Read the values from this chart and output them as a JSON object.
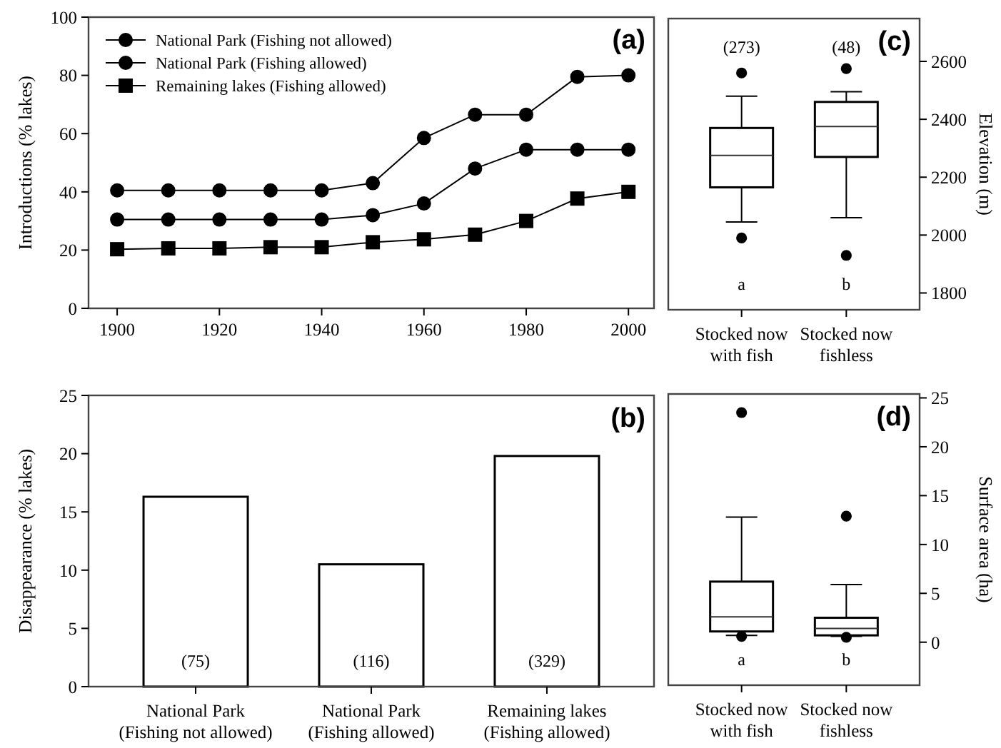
{
  "chart_data": [
    {
      "type": "line",
      "ylabel": "Introductions (% lakes)",
      "x": [
        1900,
        1910,
        1920,
        1930,
        1940,
        1950,
        1960,
        1970,
        1980,
        1990,
        2000
      ],
      "xlim": [
        1894.4,
        2005
      ],
      "xticks": [
        1900,
        1920,
        1940,
        1960,
        1980,
        2000
      ],
      "ylim": [
        0,
        100
      ],
      "yticks": [
        0,
        20,
        40,
        60,
        80,
        100
      ],
      "legend": "top left",
      "grid": false,
      "annotations": [
        "(a)"
      ],
      "series": [
        {
          "name": "National Park (Fishing not allowed)",
          "color": "#000000",
          "marker": "circle",
          "values": [
            30.5,
            30.5,
            30.5,
            30.5,
            30.5,
            32,
            36,
            48,
            54.5,
            54.5,
            54.5
          ]
        },
        {
          "name": "National Park (Fishing allowed)",
          "color": "#000000",
          "marker": "circle",
          "values": [
            40.5,
            40.5,
            40.5,
            40.5,
            40.5,
            43,
            58.5,
            66.5,
            66.5,
            79.5,
            80
          ]
        },
        {
          "name": "Remaining lakes (Fishing allowed)",
          "color": "#000000",
          "marker": "square",
          "values": [
            20.3,
            20.6,
            20.6,
            21,
            21,
            22.7,
            23.7,
            25.3,
            30,
            37.7,
            40
          ]
        }
      ]
    },
    {
      "type": "box",
      "ylabel": "Elevation (m)",
      "categories": [
        "Stocked now with fish",
        "Stocked now fishless"
      ],
      "ylim": [
        1742,
        2748
      ],
      "yticks": [
        1800,
        2000,
        2200,
        2400,
        2600
      ],
      "grid": false,
      "annotations": [
        "(c)",
        "(273)",
        "(48)",
        "a",
        "b"
      ],
      "boxes": [
        {
          "low": 2045,
          "q1": 2165,
          "median": 2275,
          "q3": 2370,
          "high": 2480,
          "outliers": [
            2560,
            1990
          ]
        },
        {
          "low": 2060,
          "q1": 2270,
          "median": 2375,
          "q3": 2460,
          "high": 2495,
          "outliers": [
            2575,
            1930
          ]
        }
      ]
    },
    {
      "type": "bar",
      "ylabel": "Disappearance (% lakes)",
      "categories": [
        "National Park (Fishing not allowed)",
        "National Park (Fishing allowed)",
        "Remaining lakes (Fishing allowed)"
      ],
      "values": [
        16.3,
        10.5,
        19.8
      ],
      "color": "#ffffff",
      "ylim": [
        0,
        25
      ],
      "yticks": [
        0,
        5,
        10,
        15,
        20,
        25
      ],
      "grid": false,
      "annotations": [
        "(b)",
        "(75)",
        "(116)",
        "(329)"
      ]
    },
    {
      "type": "box",
      "ylabel": "Surface area (ha)",
      "categories": [
        "Stocked now with fish",
        "Stocked now fishless"
      ],
      "ylim": [
        -4.4,
        25.4
      ],
      "yticks": [
        0,
        5,
        10,
        15,
        20,
        25
      ],
      "grid": false,
      "annotations": [
        "(d)",
        "a",
        "b"
      ],
      "boxes": [
        {
          "low": 0.7,
          "q1": 1.1,
          "median": 2.6,
          "q3": 6.2,
          "high": 12.8,
          "outliers": [
            23.5,
            0.6
          ]
        },
        {
          "low": 0.6,
          "q1": 0.7,
          "median": 1.4,
          "q3": 2.5,
          "high": 5.9,
          "outliers": [
            12.9,
            0.5
          ]
        }
      ]
    }
  ]
}
